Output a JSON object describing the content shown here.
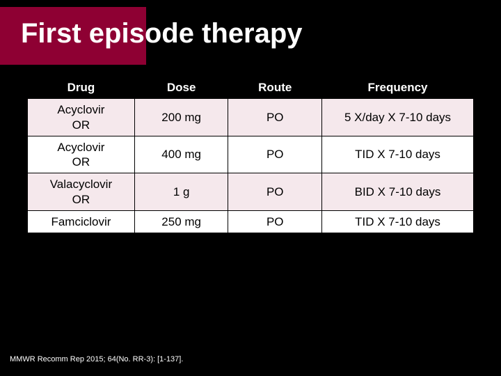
{
  "slide": {
    "title": "First episode therapy",
    "accent_color": "#8e0033",
    "background_color": "#000000",
    "citation": "MMWR Recomm Rep 2015; 64(No. RR-3): [1-137]."
  },
  "table": {
    "columns": [
      "Drug",
      "Dose",
      "Route",
      "Frequency"
    ],
    "column_widths_pct": [
      24,
      21,
      21,
      34
    ],
    "header_bg": "#000000",
    "header_fg": "#ffffff",
    "row_odd_bg": "#f5e8ec",
    "row_even_bg": "#ffffff",
    "border_color": "#000000",
    "cell_fontsize": 17,
    "header_fontsize": 17,
    "rows": [
      {
        "drug": "Acyclovir",
        "or": "OR",
        "dose": "200 mg",
        "route": "PO",
        "freq": "5 X/day X 7-10 days"
      },
      {
        "drug": "Acyclovir",
        "or": "OR",
        "dose": "400 mg",
        "route": "PO",
        "freq": "TID X 7-10 days"
      },
      {
        "drug": "Valacyclovir",
        "or": "OR",
        "dose": "1 g",
        "route": "PO",
        "freq": "BID X 7-10 days"
      },
      {
        "drug": "Famciclovir",
        "or": "",
        "dose": "250 mg",
        "route": "PO",
        "freq": "TID X 7-10 days"
      }
    ]
  }
}
